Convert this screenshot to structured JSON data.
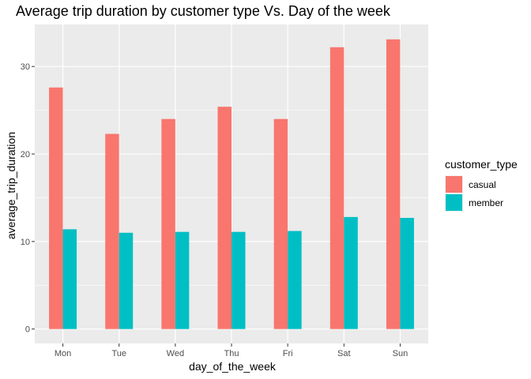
{
  "chart_data": {
    "type": "bar",
    "title": "Average trip duration by customer type Vs. Day of the week",
    "xlabel": "day_of_the_week",
    "ylabel": "average_trip_duration",
    "categories": [
      "Mon",
      "Tue",
      "Wed",
      "Thu",
      "Fri",
      "Sat",
      "Sun"
    ],
    "series": [
      {
        "name": "casual",
        "color": "#F8766D",
        "values": [
          27.6,
          22.3,
          24.0,
          25.4,
          24.0,
          32.2,
          33.1
        ]
      },
      {
        "name": "member",
        "color": "#00BFC4",
        "values": [
          11.4,
          11.0,
          11.1,
          11.1,
          11.2,
          12.8,
          12.7
        ]
      }
    ],
    "ylim": [
      -1.65,
      34.8
    ],
    "yticks": [
      0,
      10,
      20,
      30
    ],
    "y_tick_labels": [
      "0",
      "10",
      "20",
      "30"
    ],
    "grid": true,
    "legend": {
      "title": "customer_type",
      "position": "right"
    },
    "panel_background": "#EBEBEB",
    "grid_color": "#FFFFFF"
  }
}
